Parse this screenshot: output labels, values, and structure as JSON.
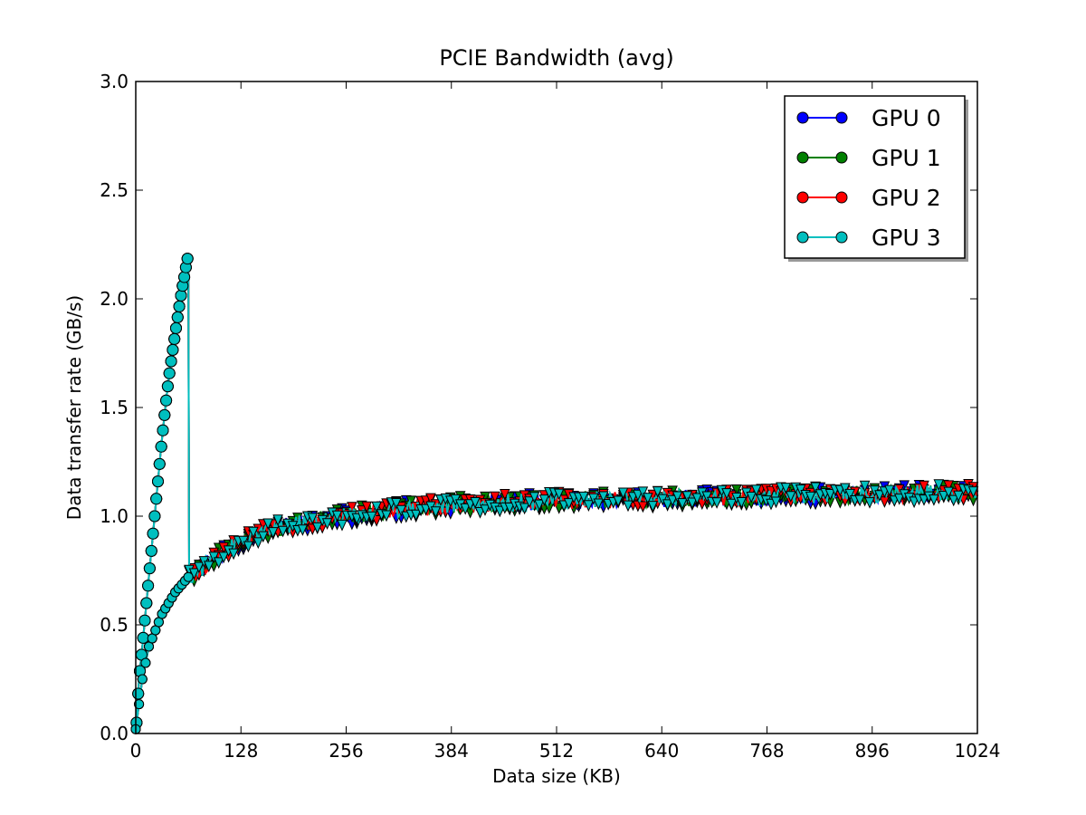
{
  "chart_data": {
    "type": "line",
    "title": "PCIE Bandwidth (avg)",
    "xlabel": "Data size (KB)",
    "ylabel": "Data transfer rate (GB/s)",
    "xlim": [
      0,
      1024
    ],
    "ylim": [
      0,
      3.0
    ],
    "x_ticks": [
      "0",
      "128",
      "256",
      "384",
      "512",
      "640",
      "768",
      "896",
      "1024"
    ],
    "y_ticks": [
      "0.0",
      "0.5",
      "1.0",
      "1.5",
      "2.0",
      "2.5",
      "3.0"
    ],
    "grid": false,
    "legend_position": "top-right",
    "small_size_regime": {
      "x": [
        1,
        4,
        8,
        12,
        16,
        20,
        24,
        28,
        32,
        36,
        40,
        44,
        48,
        52,
        56,
        60,
        62,
        64
      ],
      "y": [
        0.05,
        0.25,
        0.4,
        0.56,
        0.72,
        0.88,
        1.04,
        1.2,
        1.36,
        1.5,
        1.63,
        1.74,
        1.84,
        1.94,
        2.04,
        2.12,
        2.17,
        2.2
      ]
    },
    "large_size_regime": {
      "x": [
        0,
        8,
        16,
        32,
        48,
        64,
        96,
        128,
        160,
        192,
        256,
        320,
        384,
        448,
        512,
        640,
        768,
        896,
        1024
      ],
      "y": [
        0.02,
        0.25,
        0.4,
        0.55,
        0.65,
        0.72,
        0.82,
        0.89,
        0.94,
        0.97,
        1.01,
        1.04,
        1.06,
        1.07,
        1.08,
        1.09,
        1.1,
        1.11,
        1.12
      ]
    },
    "series": [
      {
        "name": "GPU 0",
        "color": "#0000ff"
      },
      {
        "name": "GPU 1",
        "color": "#008000"
      },
      {
        "name": "GPU 2",
        "color": "#ff0000"
      },
      {
        "name": "GPU 3",
        "color": "#00bfbf"
      }
    ]
  }
}
